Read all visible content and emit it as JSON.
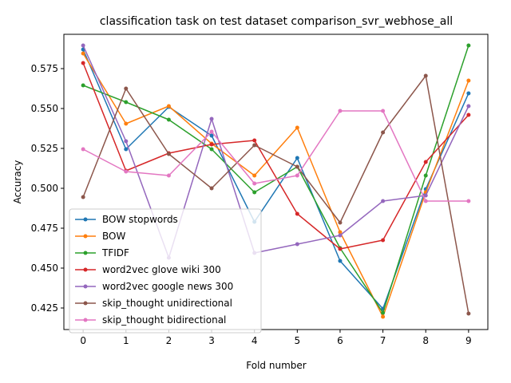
{
  "chart_data": {
    "type": "line",
    "title": "classification task on test dataset comparison_svr_webhose_all",
    "xlabel": "Fold number",
    "ylabel": "Accuracy",
    "x": [
      0,
      1,
      2,
      3,
      4,
      5,
      6,
      7,
      8,
      9
    ],
    "xlim": [
      -0.45,
      9.45
    ],
    "ylim": [
      0.4115,
      0.5965
    ],
    "yticks": [
      0.425,
      0.45,
      0.475,
      0.5,
      0.525,
      0.55,
      0.575
    ],
    "ytick_labels": [
      "0.425",
      "0.450",
      "0.475",
      "0.500",
      "0.525",
      "0.550",
      "0.575"
    ],
    "xtick_labels": [
      "0",
      "1",
      "2",
      "3",
      "4",
      "5",
      "6",
      "7",
      "8",
      "9"
    ],
    "grid": false,
    "legend_position": "lower-left",
    "series": [
      {
        "name": "BOW stopwords",
        "color": "#1f77b4",
        "values": [
          0.587,
          0.5245,
          0.551,
          0.533,
          0.479,
          0.519,
          0.4545,
          0.4245,
          0.4995,
          0.5595
        ]
      },
      {
        "name": "BOW",
        "color": "#ff7f0e",
        "values": [
          0.5845,
          0.5405,
          0.5515,
          0.528,
          0.508,
          0.538,
          0.4725,
          0.4195,
          0.4975,
          0.5675
        ]
      },
      {
        "name": "TFIDF",
        "color": "#2ca02c",
        "values": [
          0.5645,
          0.554,
          0.543,
          0.5245,
          0.4975,
          0.5135,
          0.4625,
          0.422,
          0.508,
          0.5895
        ]
      },
      {
        "name": "word2vec glove wiki 300",
        "color": "#d62728",
        "values": [
          0.5785,
          0.511,
          0.522,
          0.5275,
          0.53,
          0.484,
          0.462,
          0.4675,
          0.5165,
          0.546
        ]
      },
      {
        "name": "word2vec google news 300",
        "color": "#9467bd",
        "values": [
          0.5895,
          0.5295,
          0.4565,
          0.5435,
          0.4595,
          0.465,
          0.4705,
          0.492,
          0.4955,
          0.5515
        ]
      },
      {
        "name": "skip_thought unidirectional",
        "color": "#8c564b",
        "values": [
          0.4945,
          0.5625,
          0.5215,
          0.5,
          0.527,
          0.5135,
          0.4785,
          0.535,
          0.5705,
          0.4215
        ]
      },
      {
        "name": "skip_thought bidirectional",
        "color": "#e377c2",
        "values": [
          0.5245,
          0.5105,
          0.508,
          0.5355,
          0.503,
          0.508,
          0.5485,
          0.5485,
          0.492,
          0.492
        ]
      }
    ]
  }
}
